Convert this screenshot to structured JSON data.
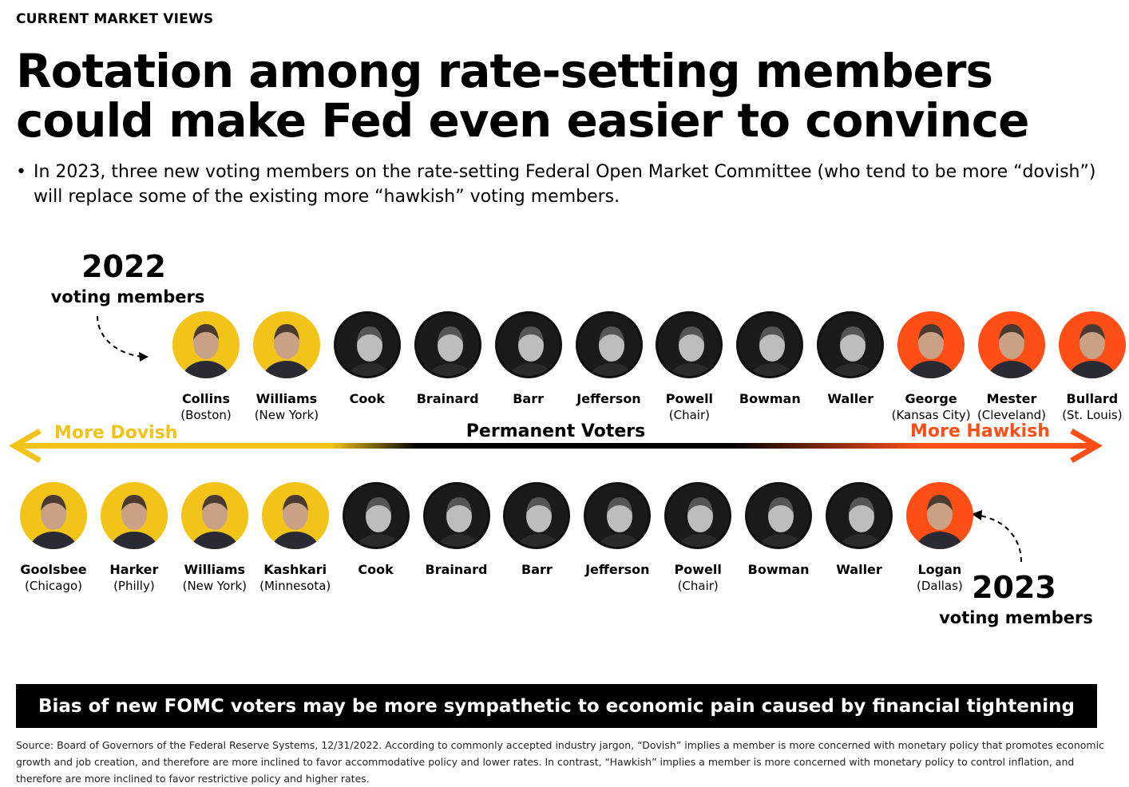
{
  "header": {
    "kicker": "CURRENT MARKET VIEWS",
    "title": "Rotation among rate-setting members could make Fed even easier to convince",
    "bullet_marker": "•",
    "bullet": "In 2023, three new voting members on the rate-setting Federal Open Market Committee (who tend to be more “dovish”) will replace some of the existing more “hawkish” voting members."
  },
  "year_2022": {
    "year": "2022",
    "subtitle": "voting members"
  },
  "year_2023": {
    "year": "2023",
    "subtitle": "voting members"
  },
  "scale": {
    "left_label": "More Dovish",
    "center_label": "Permanent Voters",
    "right_label": "More Hawkish",
    "colors": {
      "dovish": "#f2c318",
      "neutral": "#000000",
      "hawkish": "#ff4f17"
    }
  },
  "members_2022": [
    {
      "name": "Collins",
      "district": "(Boston)",
      "tone": "dovish"
    },
    {
      "name": "Williams",
      "district": "(New York)",
      "tone": "dovish"
    },
    {
      "name": "Cook",
      "district": "",
      "tone": "neutral"
    },
    {
      "name": "Brainard",
      "district": "",
      "tone": "neutral"
    },
    {
      "name": "Barr",
      "district": "",
      "tone": "neutral"
    },
    {
      "name": "Jefferson",
      "district": "",
      "tone": "neutral"
    },
    {
      "name": "Powell",
      "district": "(Chair)",
      "tone": "neutral"
    },
    {
      "name": "Bowman",
      "district": "",
      "tone": "neutral"
    },
    {
      "name": "Waller",
      "district": "",
      "tone": "neutral"
    },
    {
      "name": "George",
      "district": "(Kansas City)",
      "tone": "hawkish"
    },
    {
      "name": "Mester",
      "district": "(Cleveland)",
      "tone": "hawkish"
    },
    {
      "name": "Bullard",
      "district": "(St. Louis)",
      "tone": "hawkish"
    }
  ],
  "members_2023": [
    {
      "name": "Goolsbee",
      "district": "(Chicago)",
      "tone": "dovish"
    },
    {
      "name": "Harker",
      "district": "(Philly)",
      "tone": "dovish"
    },
    {
      "name": "Williams",
      "district": "(New York)",
      "tone": "dovish"
    },
    {
      "name": "Kashkari",
      "district": "(Minnesota)",
      "tone": "dovish"
    },
    {
      "name": "Cook",
      "district": "",
      "tone": "neutral"
    },
    {
      "name": "Brainard",
      "district": "",
      "tone": "neutral"
    },
    {
      "name": "Barr",
      "district": "",
      "tone": "neutral"
    },
    {
      "name": "Jefferson",
      "district": "",
      "tone": "neutral"
    },
    {
      "name": "Powell",
      "district": "(Chair)",
      "tone": "neutral"
    },
    {
      "name": "Bowman",
      "district": "",
      "tone": "neutral"
    },
    {
      "name": "Waller",
      "district": "",
      "tone": "neutral"
    },
    {
      "name": "Logan",
      "district": "(Dallas)",
      "tone": "hawkish"
    }
  ],
  "footer": {
    "banner": "Bias of new FOMC voters may be more sympathetic to economic pain caused by financial tightening",
    "source": "Source: Board of Governors of the Federal Reserve Systems, 12/31/2022. According to commonly accepted industry jargon, “Dovish” implies a member is more concerned with monetary policy that promotes economic growth and job creation, and therefore are more inclined to favor accommodative policy and lower rates. In contrast, “Hawkish” implies a member is more concerned with monetary policy to control inflation, and therefore are more inclined to favor restrictive policy and higher rates."
  }
}
